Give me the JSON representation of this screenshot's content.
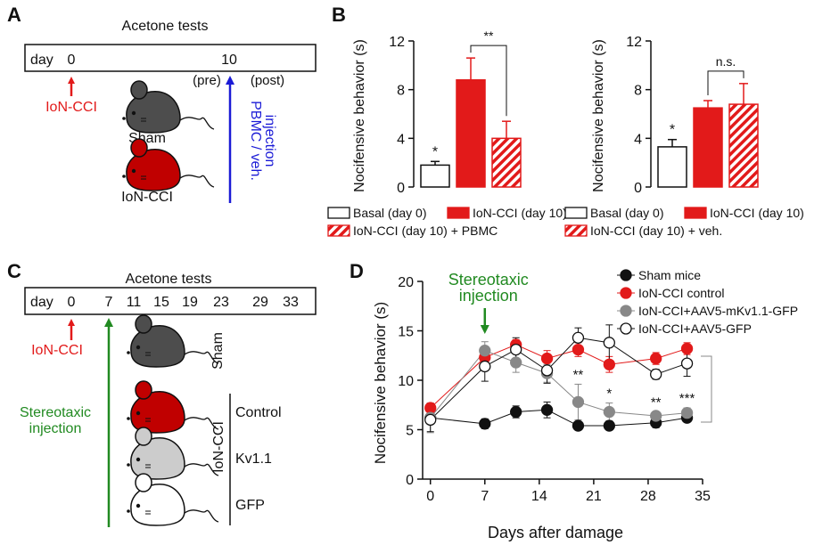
{
  "colors": {
    "red": "#e21a1a",
    "green": "#218a21",
    "blue": "#1a1ad6",
    "black": "#111111",
    "gray": "#888888",
    "dark_mouse": "#4d4d4d",
    "red_mouse": "#c00000",
    "light_mouse": "#cccccc",
    "white": "#ffffff"
  },
  "panel_a": {
    "label": "A",
    "title": "Acetone tests",
    "day_label": "day",
    "day0": "0",
    "day10": "10",
    "pre": "(pre)",
    "post": "(post)",
    "ion_cci": "IoN-CCI",
    "sham": "Sham",
    "mouse_ion": "IoN-CCI",
    "injection_line1": "PBMC / veh.",
    "injection_line2": "injection"
  },
  "panel_c": {
    "label": "C",
    "title": "Acetone tests",
    "day_label": "day",
    "days": [
      "0",
      "7",
      "11",
      "15",
      "19",
      "23",
      "29",
      "33"
    ],
    "ion_cci": "IoN-CCI",
    "injection_line1": "Stereotaxic",
    "injection_line2": "injection",
    "sham": "Sham",
    "group": "IoN-CCI",
    "control": "Control",
    "kv": "Kv1.1",
    "gfp": "GFP"
  },
  "chart_data": [
    {
      "type": "bar",
      "panel_label": "B",
      "ylabel": "Nocifensive behavior (s)",
      "ylim": [
        0,
        12
      ],
      "yticks": [
        "0",
        "4",
        "8",
        "12"
      ],
      "categories": [
        "Basal (day 0)",
        "IoN-CCI (day 10)",
        "IoN-CCI (day 10) + PBMC"
      ],
      "values": [
        1.8,
        8.8,
        4.0
      ],
      "errors": [
        0.3,
        1.8,
        1.4
      ],
      "fills": [
        "white",
        "red",
        "hatch"
      ],
      "stars": [
        "*",
        "",
        ""
      ],
      "comparison_label": "**"
    },
    {
      "type": "bar",
      "ylabel": "Nocifensive behavior (s)",
      "ylim": [
        0,
        12
      ],
      "yticks": [
        "0",
        "4",
        "8",
        "12"
      ],
      "categories": [
        "Basal (day 0)",
        "IoN-CCI (day 10)",
        "IoN-CCI (day 10) + veh."
      ],
      "values": [
        3.3,
        6.5,
        6.8
      ],
      "errors": [
        0.6,
        0.6,
        1.7
      ],
      "fills": [
        "white",
        "red",
        "hatch"
      ],
      "stars": [
        "*",
        "",
        ""
      ],
      "comparison_label": "n.s."
    },
    {
      "type": "line",
      "panel_label": "D",
      "xlabel": "Days after damage",
      "ylabel": "Nocifensive behavior (s)",
      "xlim": [
        -1,
        35
      ],
      "ylim": [
        0,
        20
      ],
      "xticks": [
        "0",
        "7",
        "14",
        "21",
        "28",
        "35"
      ],
      "yticks": [
        "0",
        "5",
        "10",
        "15",
        "20"
      ],
      "x": [
        0,
        7,
        11,
        15,
        19,
        23,
        29,
        33
      ],
      "annotation_line1": "Stereotaxic",
      "annotation_line2": "injection",
      "annotation_x": 7,
      "series": [
        {
          "name": "Sham mice",
          "style": "black",
          "values": [
            6.2,
            5.6,
            6.8,
            7.0,
            5.4,
            5.4,
            5.7,
            6.2
          ],
          "errors": [
            0.6,
            0.5,
            0.6,
            0.8,
            0.4,
            0.3,
            0.5,
            0.4
          ]
        },
        {
          "name": "IoN-CCI control",
          "style": "red",
          "values": [
            7.2,
            12.3,
            13.6,
            12.2,
            13.1,
            11.6,
            12.2,
            13.2
          ],
          "errors": [
            0.5,
            0.7,
            0.5,
            0.8,
            0.7,
            0.8,
            0.6,
            0.6
          ]
        },
        {
          "name": "IoN-CCI+AAV5-mKv1.1-GFP",
          "style": "gray",
          "values": [
            6.2,
            13.0,
            11.8,
            10.7,
            7.8,
            6.8,
            6.4,
            6.7
          ],
          "errors": [
            1.5,
            0.9,
            1.0,
            0.9,
            1.8,
            0.9,
            0.4,
            0.5
          ]
        },
        {
          "name": "IoN-CCI+AAV5-GFP",
          "style": "white",
          "values": [
            6.0,
            11.4,
            13.1,
            11.0,
            14.3,
            13.8,
            10.6,
            11.7
          ],
          "errors": [
            1.2,
            1.5,
            1.2,
            1.3,
            1.0,
            1.8,
            0.5,
            1.3
          ]
        }
      ],
      "significance": [
        {
          "x": 19,
          "label": "**"
        },
        {
          "x": 23,
          "label": "*"
        },
        {
          "x": 29,
          "label": "**"
        },
        {
          "x": 33,
          "label": "***"
        }
      ]
    }
  ]
}
